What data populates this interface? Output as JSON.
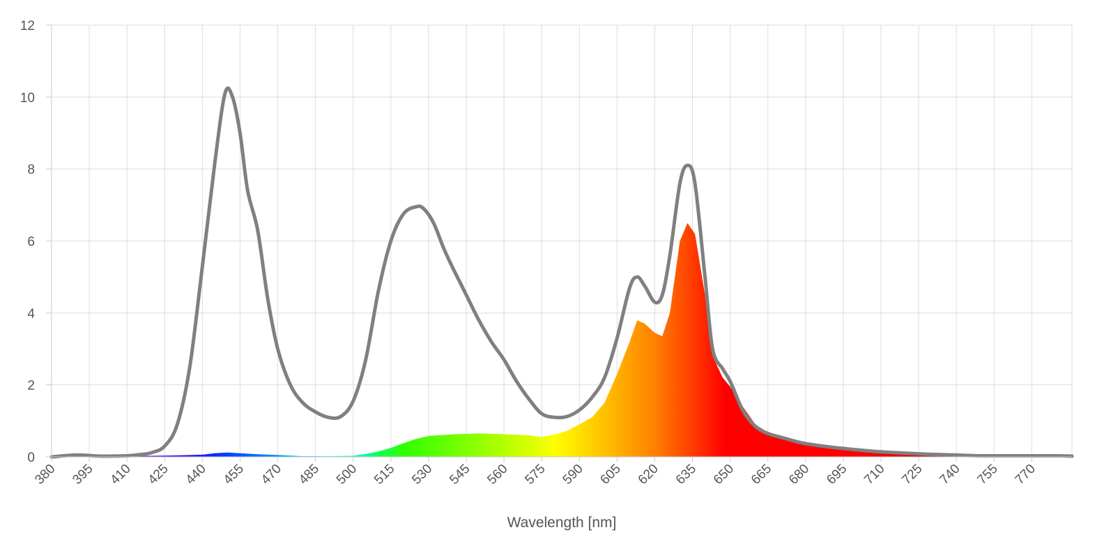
{
  "chart_data": {
    "type": "area",
    "title": "",
    "xlabel": "Wavelength [nm]",
    "ylabel": "",
    "xlim": [
      380,
      786
    ],
    "ylim": [
      0,
      12
    ],
    "x_ticks": [
      "380",
      "395",
      "410",
      "425",
      "440",
      "455",
      "470",
      "485",
      "500",
      "515",
      "530",
      "545",
      "560",
      "575",
      "590",
      "605",
      "620",
      "635",
      "650",
      "665",
      "680",
      "695",
      "710",
      "725",
      "740",
      "755",
      "770"
    ],
    "y_ticks": [
      "0",
      "2",
      "4",
      "6",
      "8",
      "10",
      "12"
    ],
    "grid": true,
    "legend": "none",
    "series": [
      {
        "kind": "line",
        "color": "#808080",
        "x": [
          380,
          390,
          400,
          410,
          415,
          420,
          425,
          430,
          435,
          440,
          445,
          449,
          452,
          455,
          458,
          462,
          466,
          470,
          475,
          480,
          485,
          490,
          495,
          500,
          505,
          510,
          515,
          520,
          525,
          528,
          532,
          536,
          540,
          545,
          550,
          555,
          560,
          565,
          570,
          575,
          580,
          585,
          590,
          595,
          600,
          605,
          610,
          613,
          616,
          620,
          623,
          626,
          630,
          633,
          636,
          640,
          643,
          647,
          650,
          655,
          660,
          665,
          670,
          675,
          680,
          690,
          700,
          710,
          720,
          730,
          740,
          750,
          760,
          770,
          780,
          786
        ],
        "y": [
          0.0,
          0.05,
          0.02,
          0.03,
          0.06,
          0.12,
          0.3,
          0.9,
          2.5,
          5.3,
          8.2,
          10.1,
          10.0,
          9.0,
          7.4,
          6.3,
          4.4,
          3.0,
          2.0,
          1.5,
          1.25,
          1.1,
          1.12,
          1.55,
          2.7,
          4.6,
          6.0,
          6.75,
          6.95,
          6.9,
          6.5,
          5.8,
          5.2,
          4.5,
          3.8,
          3.2,
          2.7,
          2.1,
          1.6,
          1.2,
          1.1,
          1.12,
          1.3,
          1.65,
          2.2,
          3.3,
          4.7,
          5.0,
          4.75,
          4.3,
          4.5,
          5.6,
          7.6,
          8.1,
          7.6,
          5.0,
          3.0,
          2.45,
          2.1,
          1.3,
          0.85,
          0.65,
          0.55,
          0.45,
          0.37,
          0.27,
          0.2,
          0.14,
          0.1,
          0.07,
          0.05,
          0.03,
          0.03,
          0.03,
          0.03,
          0.02
        ]
      },
      {
        "kind": "area",
        "fill": "visible-spectrum-gradient",
        "x": [
          380,
          390,
          400,
          410,
          420,
          430,
          440,
          445,
          450,
          455,
          460,
          470,
          480,
          490,
          500,
          505,
          510,
          515,
          520,
          525,
          530,
          540,
          550,
          560,
          570,
          575,
          580,
          585,
          590,
          595,
          600,
          605,
          610,
          613,
          616,
          620,
          623,
          626,
          630,
          633,
          636,
          640,
          643,
          647,
          650,
          655,
          660,
          665,
          670,
          675,
          680,
          690,
          700,
          710,
          720,
          730,
          740,
          750,
          760,
          770,
          780,
          786
        ],
        "y": [
          0.0,
          0.0,
          0.01,
          0.02,
          0.03,
          0.04,
          0.06,
          0.1,
          0.12,
          0.1,
          0.08,
          0.05,
          0.02,
          0.02,
          0.03,
          0.08,
          0.15,
          0.25,
          0.38,
          0.5,
          0.58,
          0.63,
          0.65,
          0.63,
          0.6,
          0.55,
          0.62,
          0.72,
          0.9,
          1.1,
          1.5,
          2.3,
          3.2,
          3.8,
          3.7,
          3.45,
          3.35,
          4.0,
          6.0,
          6.5,
          6.2,
          4.5,
          2.8,
          2.2,
          1.95,
          1.4,
          0.9,
          0.68,
          0.58,
          0.48,
          0.4,
          0.3,
          0.22,
          0.15,
          0.1,
          0.07,
          0.05,
          0.04,
          0.03,
          0.03,
          0.03,
          0.02
        ]
      }
    ]
  }
}
